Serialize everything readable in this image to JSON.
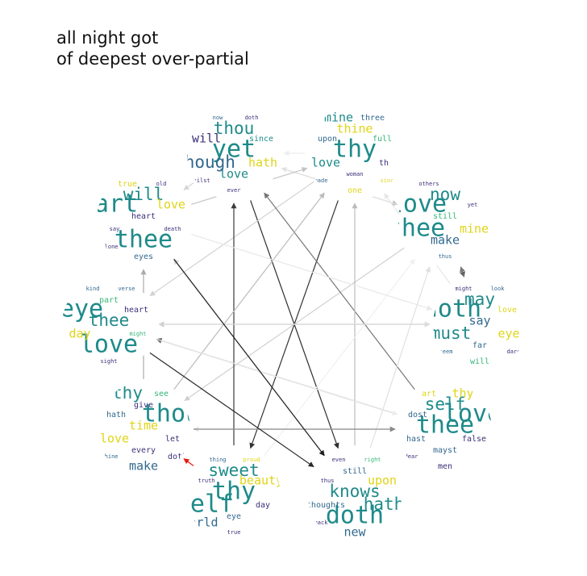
{
  "title_lines": [
    "all night got",
    "of deepest over-partial"
  ],
  "palette": {
    "teal": "#1f8a8a",
    "blue": "#31688e",
    "navy": "#3b2f78",
    "green": "#35b779",
    "yellow": "#e0d418",
    "red_edge": "#e8180c"
  },
  "nodes": [
    {
      "id": "n1",
      "words": [
        {
          "t": "thou",
          "w": "big",
          "c": "teal"
        },
        {
          "t": "yet",
          "w": "huge",
          "c": "teal"
        },
        {
          "t": "love",
          "w": "mid",
          "c": "teal"
        },
        {
          "t": "will",
          "w": "mid",
          "c": "navy"
        },
        {
          "t": "since",
          "w": "small",
          "c": "teal"
        },
        {
          "t": "though",
          "w": "big",
          "c": "blue"
        },
        {
          "t": "hath",
          "w": "mid",
          "c": "yellow"
        },
        {
          "t": "ever",
          "w": "tiny",
          "c": "navy"
        },
        {
          "t": "now",
          "w": "tiny",
          "c": "blue"
        },
        {
          "t": "doth",
          "w": "tiny",
          "c": "navy"
        },
        {
          "t": "whilst",
          "w": "tiny",
          "c": "navy"
        }
      ]
    },
    {
      "id": "n2",
      "words": [
        {
          "t": "thine",
          "w": "mid",
          "c": "yellow"
        },
        {
          "t": "thy",
          "w": "huge",
          "c": "teal"
        },
        {
          "t": "woman",
          "w": "tiny",
          "c": "navy"
        },
        {
          "t": "upon",
          "w": "small",
          "c": "blue"
        },
        {
          "t": "full",
          "w": "small",
          "c": "green"
        },
        {
          "t": "love",
          "w": "mid",
          "c": "teal"
        },
        {
          "t": "th",
          "w": "small",
          "c": "navy"
        },
        {
          "t": "one",
          "w": "small",
          "c": "yellow"
        },
        {
          "t": "mine",
          "w": "mid",
          "c": "teal"
        },
        {
          "t": "three",
          "w": "small",
          "c": "blue"
        },
        {
          "t": "made",
          "w": "tiny",
          "c": "blue"
        },
        {
          "t": "since",
          "w": "tiny",
          "c": "yellow"
        }
      ]
    },
    {
      "id": "n3",
      "words": [
        {
          "t": "now",
          "w": "big",
          "c": "teal"
        },
        {
          "t": "still",
          "w": "small",
          "c": "green"
        },
        {
          "t": "make",
          "w": "mid",
          "c": "blue"
        },
        {
          "t": "love",
          "w": "huge",
          "c": "teal"
        },
        {
          "t": "yet",
          "w": "tiny",
          "c": "navy"
        },
        {
          "t": "thee",
          "w": "huge",
          "c": "teal"
        },
        {
          "t": "mine",
          "w": "mid",
          "c": "yellow"
        },
        {
          "t": "thus",
          "w": "tiny",
          "c": "blue"
        },
        {
          "t": "others",
          "w": "tiny",
          "c": "navy"
        }
      ]
    },
    {
      "id": "n4",
      "words": [
        {
          "t": "may",
          "w": "big",
          "c": "teal"
        },
        {
          "t": "say",
          "w": "mid",
          "c": "blue"
        },
        {
          "t": "far",
          "w": "small",
          "c": "blue"
        },
        {
          "t": "doth",
          "w": "huge",
          "c": "teal"
        },
        {
          "t": "love",
          "w": "small",
          "c": "yellow"
        },
        {
          "t": "must",
          "w": "big",
          "c": "teal"
        },
        {
          "t": "eye",
          "w": "mid",
          "c": "yellow"
        },
        {
          "t": "will",
          "w": "small",
          "c": "green"
        },
        {
          "t": "might",
          "w": "tiny",
          "c": "navy"
        },
        {
          "t": "look",
          "w": "tiny",
          "c": "blue"
        },
        {
          "t": "seem",
          "w": "tiny",
          "c": "blue"
        },
        {
          "t": "dare",
          "w": "tiny",
          "c": "navy"
        }
      ]
    },
    {
      "id": "n5",
      "words": [
        {
          "t": "self",
          "w": "big",
          "c": "teal"
        },
        {
          "t": "thee",
          "w": "huge",
          "c": "teal"
        },
        {
          "t": "mayst",
          "w": "small",
          "c": "blue"
        },
        {
          "t": "dost",
          "w": "small",
          "c": "blue"
        },
        {
          "t": "love",
          "w": "huge",
          "c": "teal"
        },
        {
          "t": "hast",
          "w": "small",
          "c": "blue"
        },
        {
          "t": "false",
          "w": "small",
          "c": "navy"
        },
        {
          "t": "men",
          "w": "small",
          "c": "navy"
        },
        {
          "t": "art",
          "w": "small",
          "c": "yellow"
        },
        {
          "t": "thy",
          "w": "mid",
          "c": "yellow"
        },
        {
          "t": "dear",
          "w": "tiny",
          "c": "navy"
        }
      ]
    },
    {
      "id": "n6",
      "words": [
        {
          "t": "still",
          "w": "small",
          "c": "blue"
        },
        {
          "t": "knows",
          "w": "big",
          "c": "teal"
        },
        {
          "t": "doth",
          "w": "huge",
          "c": "teal"
        },
        {
          "t": "thus",
          "w": "tiny",
          "c": "navy"
        },
        {
          "t": "upon",
          "w": "mid",
          "c": "yellow"
        },
        {
          "t": "thoughts",
          "w": "small",
          "c": "blue"
        },
        {
          "t": "hath",
          "w": "big",
          "c": "teal"
        },
        {
          "t": "new",
          "w": "mid",
          "c": "blue"
        },
        {
          "t": "even",
          "w": "tiny",
          "c": "navy"
        },
        {
          "t": "right",
          "w": "tiny",
          "c": "green"
        },
        {
          "t": "back",
          "w": "tiny",
          "c": "navy"
        }
      ]
    },
    {
      "id": "n7",
      "words": [
        {
          "t": "sweet",
          "w": "big",
          "c": "teal"
        },
        {
          "t": "thy",
          "w": "huge",
          "c": "teal"
        },
        {
          "t": "eye",
          "w": "small",
          "c": "blue"
        },
        {
          "t": "truth",
          "w": "tiny",
          "c": "navy"
        },
        {
          "t": "beauty",
          "w": "mid",
          "c": "yellow"
        },
        {
          "t": "self",
          "w": "huge",
          "c": "teal"
        },
        {
          "t": "day",
          "w": "small",
          "c": "navy"
        },
        {
          "t": "true",
          "w": "tiny",
          "c": "navy"
        },
        {
          "t": "thing",
          "w": "tiny",
          "c": "blue"
        },
        {
          "t": "proud",
          "w": "tiny",
          "c": "yellow"
        },
        {
          "t": "world",
          "w": "mid",
          "c": "blue"
        }
      ]
    },
    {
      "id": "n8",
      "words": [
        {
          "t": "give",
          "w": "small",
          "c": "navy"
        },
        {
          "t": "time",
          "w": "mid",
          "c": "yellow"
        },
        {
          "t": "every",
          "w": "small",
          "c": "navy"
        },
        {
          "t": "hath",
          "w": "small",
          "c": "blue"
        },
        {
          "t": "thou",
          "w": "huge",
          "c": "teal"
        },
        {
          "t": "love",
          "w": "mid",
          "c": "yellow"
        },
        {
          "t": "let",
          "w": "small",
          "c": "navy"
        },
        {
          "t": "make",
          "w": "mid",
          "c": "blue"
        },
        {
          "t": "thy",
          "w": "big",
          "c": "teal"
        },
        {
          "t": "see",
          "w": "small",
          "c": "green"
        },
        {
          "t": "thine",
          "w": "tiny",
          "c": "blue"
        },
        {
          "t": "doth",
          "w": "small",
          "c": "navy"
        }
      ]
    },
    {
      "id": "n9",
      "words": [
        {
          "t": "part",
          "w": "small",
          "c": "green"
        },
        {
          "t": "thee",
          "w": "big",
          "c": "teal"
        },
        {
          "t": "love",
          "w": "huge",
          "c": "teal"
        },
        {
          "t": "eye",
          "w": "huge",
          "c": "teal"
        },
        {
          "t": "heart",
          "w": "small",
          "c": "navy"
        },
        {
          "t": "day",
          "w": "mid",
          "c": "yellow"
        },
        {
          "t": "might",
          "w": "tiny",
          "c": "green"
        },
        {
          "t": "sight",
          "w": "tiny",
          "c": "navy"
        },
        {
          "t": "kind",
          "w": "tiny",
          "c": "blue"
        },
        {
          "t": "verse",
          "w": "tiny",
          "c": "blue"
        }
      ]
    },
    {
      "id": "n10",
      "words": [
        {
          "t": "will",
          "w": "big",
          "c": "teal"
        },
        {
          "t": "heart",
          "w": "small",
          "c": "navy"
        },
        {
          "t": "thee",
          "w": "huge",
          "c": "teal"
        },
        {
          "t": "art",
          "w": "huge",
          "c": "teal"
        },
        {
          "t": "love",
          "w": "mid",
          "c": "yellow"
        },
        {
          "t": "say",
          "w": "tiny",
          "c": "navy"
        },
        {
          "t": "death",
          "w": "tiny",
          "c": "navy"
        },
        {
          "t": "eyes",
          "w": "small",
          "c": "blue"
        },
        {
          "t": "true",
          "w": "small",
          "c": "yellow"
        },
        {
          "t": "old",
          "w": "tiny",
          "c": "navy"
        },
        {
          "t": "alone",
          "w": "tiny",
          "c": "navy"
        }
      ]
    }
  ],
  "edges": [
    {
      "from": "n1",
      "to": "n3",
      "c": "#bdbdbd"
    },
    {
      "from": "n1",
      "to": "n6",
      "c": "#2e2e2e"
    },
    {
      "from": "n1",
      "to": "n10",
      "c": "#d6d6d6"
    },
    {
      "from": "n2",
      "to": "n7",
      "c": "#333333"
    },
    {
      "from": "n2",
      "to": "n9",
      "c": "#d3d3d3"
    },
    {
      "from": "n2",
      "to": "n1",
      "c": "#eeeeee"
    },
    {
      "from": "n3",
      "to": "n4",
      "c": "#555555"
    },
    {
      "from": "n4",
      "to": "n3",
      "c": "#777777"
    },
    {
      "from": "n3",
      "to": "n8",
      "c": "#d0d0d0"
    },
    {
      "from": "n3",
      "to": "n1",
      "c": "#e2e2e2"
    },
    {
      "from": "n4",
      "to": "n9",
      "c": "#c8c8c8"
    },
    {
      "from": "n4",
      "to": "n2",
      "c": "#e6e6e6"
    },
    {
      "from": "n5",
      "to": "n9",
      "c": "#5e5e5e"
    },
    {
      "from": "n5",
      "to": "n1",
      "c": "#777777"
    },
    {
      "from": "n5",
      "to": "n8",
      "c": "#e4e4e4"
    },
    {
      "from": "n6",
      "to": "n2",
      "c": "#bcbcbc"
    },
    {
      "from": "n6",
      "to": "n3",
      "c": "#e0e0e0"
    },
    {
      "from": "n6",
      "to": "n10",
      "c": "#d2d2d2"
    },
    {
      "from": "n7",
      "to": "n8",
      "c": "#e8180c"
    },
    {
      "from": "n7",
      "to": "n1",
      "c": "#3a3a3a"
    },
    {
      "from": "n7",
      "to": "n3",
      "c": "#f0f0f0"
    },
    {
      "from": "n8",
      "to": "n5",
      "c": "#8a8a8a"
    },
    {
      "from": "n8",
      "to": "n10",
      "c": "#aaaaaa"
    },
    {
      "from": "n8",
      "to": "n2",
      "c": "#bbbbbb"
    },
    {
      "from": "n9",
      "to": "n4",
      "c": "#dadada"
    },
    {
      "from": "n9",
      "to": "n6",
      "c": "#2a2a2a"
    },
    {
      "from": "n9",
      "to": "n5",
      "c": "#eeeeee"
    },
    {
      "from": "n10",
      "to": "n6",
      "c": "#1f1f1f"
    },
    {
      "from": "n10",
      "to": "n2",
      "c": "#c4c4c4"
    },
    {
      "from": "n10",
      "to": "n4",
      "c": "#e8e8e8"
    }
  ]
}
